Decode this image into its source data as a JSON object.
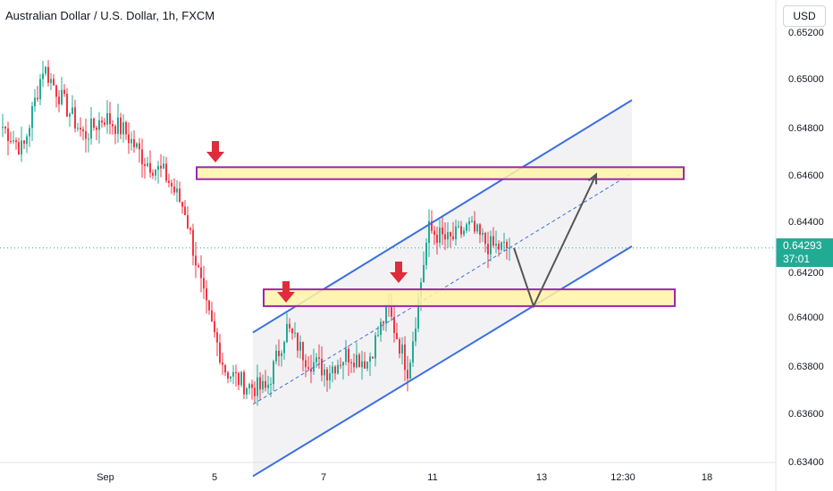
{
  "header": {
    "title": "Australian Dollar / U.S. Dollar, 1h, FXCM"
  },
  "currency_button": "USD",
  "last_price": {
    "value": "0.64293",
    "countdown": "37:01",
    "color": "#22ab94"
  },
  "colors": {
    "up": "#22ab94",
    "down": "#f23645",
    "channel": "#3b6fe0",
    "zone_fill": "#fff5a8",
    "zone_border": "#9c27b0",
    "marker": "#e02b3a",
    "projection": "#555555"
  },
  "chart_data": {
    "type": "candlestick",
    "title": "Australian Dollar / U.S. Dollar, 1h, FXCM",
    "symbol": "AUDUSD",
    "timeframe": "1h",
    "x_ticks": [
      "Sep",
      "5",
      "7",
      "11",
      "13",
      "12:30",
      "18"
    ],
    "y_ticks": [
      "0.65200",
      "0.65000",
      "0.64800",
      "0.64600",
      "0.64400",
      "0.64200",
      "0.64000",
      "0.63800",
      "0.63600",
      "0.63400"
    ],
    "ylim": [
      0.634,
      0.6525
    ],
    "last_price": 0.64293,
    "trend": [
      [
        "Sep",
        0.648
      ],
      [
        "Sep",
        0.647
      ],
      [
        "Sep",
        0.6505
      ],
      [
        "Sep",
        0.649
      ],
      [
        "Sep",
        0.6476
      ],
      [
        "Sep",
        0.6484
      ],
      [
        "Sep",
        0.6478
      ],
      [
        "5",
        0.6466
      ],
      [
        "5",
        0.646
      ],
      [
        "5",
        0.6445
      ],
      [
        "5",
        0.6405
      ],
      [
        "5",
        0.6378
      ],
      [
        "5",
        0.6372
      ],
      [
        "7",
        0.637
      ],
      [
        "7",
        0.6396
      ],
      [
        "7",
        0.6383
      ],
      [
        "7",
        0.6378
      ],
      [
        "7",
        0.6385
      ],
      [
        "7",
        0.6382
      ],
      [
        "7",
        0.6404
      ],
      [
        "11",
        0.6378
      ],
      [
        "11",
        0.6437
      ],
      [
        "11",
        0.6432
      ],
      [
        "11",
        0.6438
      ],
      [
        "11",
        0.643
      ],
      [
        "11",
        0.6429
      ]
    ],
    "channel": {
      "upper": [
        [
          0.6394,
          0.6491
        ]
      ],
      "lower": [
        [
          0.6334,
          0.643
        ]
      ]
    },
    "resistance_zone": [
      0.6458,
      0.6463
    ],
    "support_zone": [
      0.6405,
      0.6412
    ],
    "projection": [
      0.64293,
      0.6405,
      0.646
    ]
  }
}
